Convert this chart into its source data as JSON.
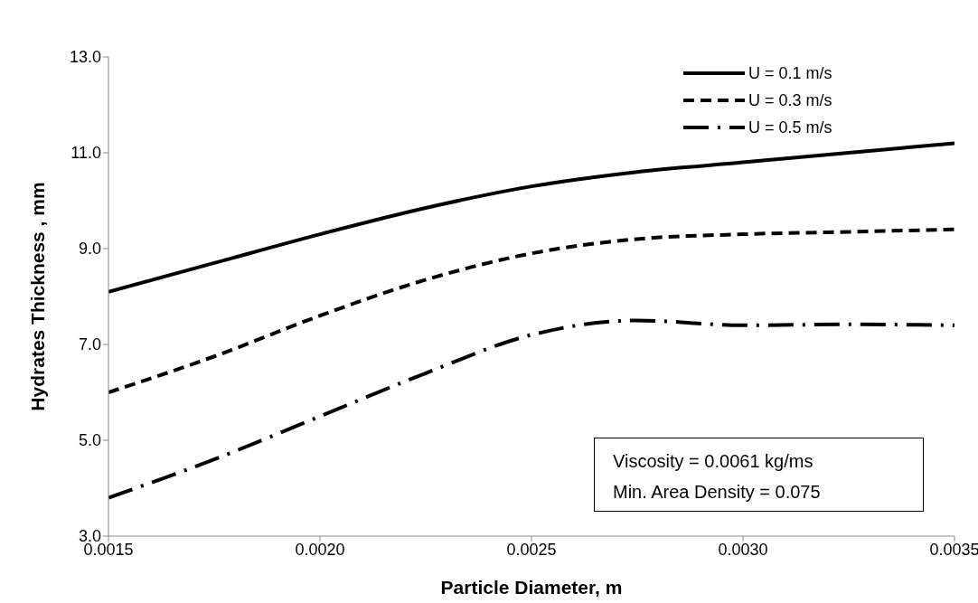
{
  "chart_data": {
    "type": "line",
    "xlabel": "Particle Diameter, m",
    "ylabel": "Hydrates Thickness , mm",
    "xlim": [
      0.0015,
      0.0035
    ],
    "xticks": [
      {
        "value": 0.0015,
        "label": "0.0015"
      },
      {
        "value": 0.002,
        "label": "0.0020"
      },
      {
        "value": 0.0025,
        "label": "0.0025"
      },
      {
        "value": 0.003,
        "label": "0.0030"
      },
      {
        "value": 0.0035,
        "label": "0.0035"
      }
    ],
    "ylim": [
      3,
      13
    ],
    "yticks": [
      {
        "value": 3,
        "label": "3.0"
      },
      {
        "value": 5,
        "label": "5.0"
      },
      {
        "value": 7,
        "label": "7.0"
      },
      {
        "value": 9,
        "label": "9.0"
      },
      {
        "value": 11,
        "label": "11.0"
      },
      {
        "value": 13,
        "label": "13.0"
      }
    ],
    "x": [
      0.0015,
      0.00175,
      0.002,
      0.00225,
      0.0025,
      0.00275,
      0.003,
      0.00325,
      0.0035
    ],
    "series": [
      {
        "name": "U = 0.1 m/s",
        "color": "#000000",
        "line_style": "solid",
        "values": [
          8.1,
          8.7,
          9.3,
          9.85,
          10.3,
          10.6,
          10.8,
          11.0,
          11.2
        ]
      },
      {
        "name": "U = 0.3 m/s",
        "color": "#000000",
        "line_style": "dashed",
        "values": [
          6.0,
          6.75,
          7.6,
          8.35,
          8.9,
          9.2,
          9.3,
          9.35,
          9.4
        ]
      },
      {
        "name": "U = 0.5 m/s",
        "color": "#000000",
        "line_style": "dashdot",
        "values": [
          3.8,
          4.6,
          5.5,
          6.4,
          7.2,
          7.5,
          7.4,
          7.42,
          7.4
        ]
      }
    ],
    "legend": "top right",
    "grid": false,
    "marker": "none",
    "annotations": [
      "Viscosity = 0.0061 kg/ms",
      "Min. Area Density = 0.075"
    ]
  }
}
